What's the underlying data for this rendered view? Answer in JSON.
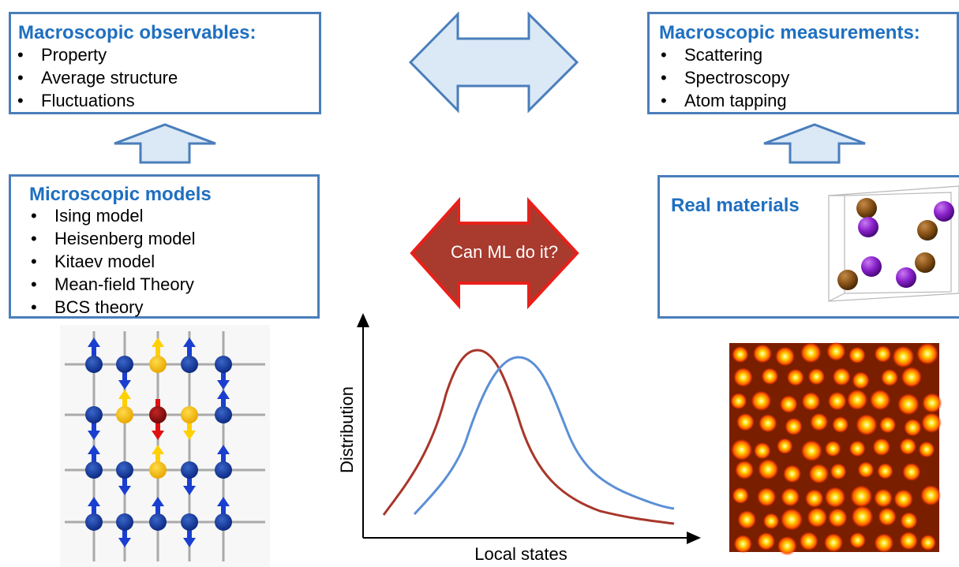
{
  "observables": {
    "title": "Macroscopic observables:",
    "items": [
      "Property",
      "Average structure",
      "Fluctuations"
    ]
  },
  "measurements": {
    "title": "Macroscopic measurements:",
    "items": [
      "Scattering",
      "Spectroscopy",
      "Atom tapping"
    ]
  },
  "models": {
    "title": "Microscopic models",
    "items": [
      "Ising model",
      "Heisenberg model",
      "Kitaev model",
      "Mean-field Theory",
      "BCS theory"
    ]
  },
  "materials": {
    "title": "Real materials"
  },
  "center_arrow": {
    "label": "Can ML do it?"
  },
  "plot": {
    "xlabel": "Local states",
    "ylabel": "Distribution"
  },
  "colors": {
    "box_border": "#4a7ebb",
    "title_text": "#1f6fc0",
    "arrow_fill": "#dbe8f6",
    "ml_arrow_fill": "#a83a2e",
    "ml_arrow_border": "#e8201a",
    "curve_red": "#a8362a",
    "curve_blue": "#5b8fd6"
  }
}
